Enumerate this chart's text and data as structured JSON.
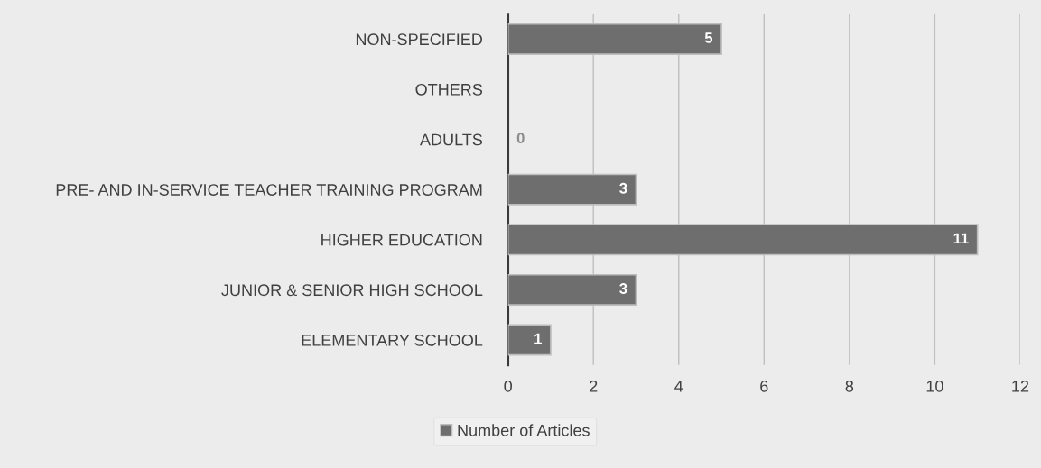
{
  "chart_data": {
    "type": "bar",
    "orientation": "horizontal",
    "categories": [
      "NON-SPECIFIED",
      "OTHERS",
      "ADULTS",
      "PRE- AND IN-SERVICE TEACHER TRAINING PROGRAM",
      "HIGHER EDUCATION",
      "JUNIOR & SENIOR HIGH SCHOOL",
      "ELEMENTARY SCHOOL"
    ],
    "series": [
      {
        "name": "Number of Articles",
        "color": "#6e6e6e",
        "values": [
          5,
          null,
          0,
          3,
          11,
          3,
          1
        ],
        "value_labels": [
          "5",
          null,
          "0",
          "3",
          "11",
          "3",
          "1"
        ]
      }
    ],
    "xlim": [
      0,
      12
    ],
    "xticks": [
      0,
      2,
      4,
      6,
      8,
      10,
      12
    ],
    "grid": "x",
    "legend": "bottom"
  }
}
